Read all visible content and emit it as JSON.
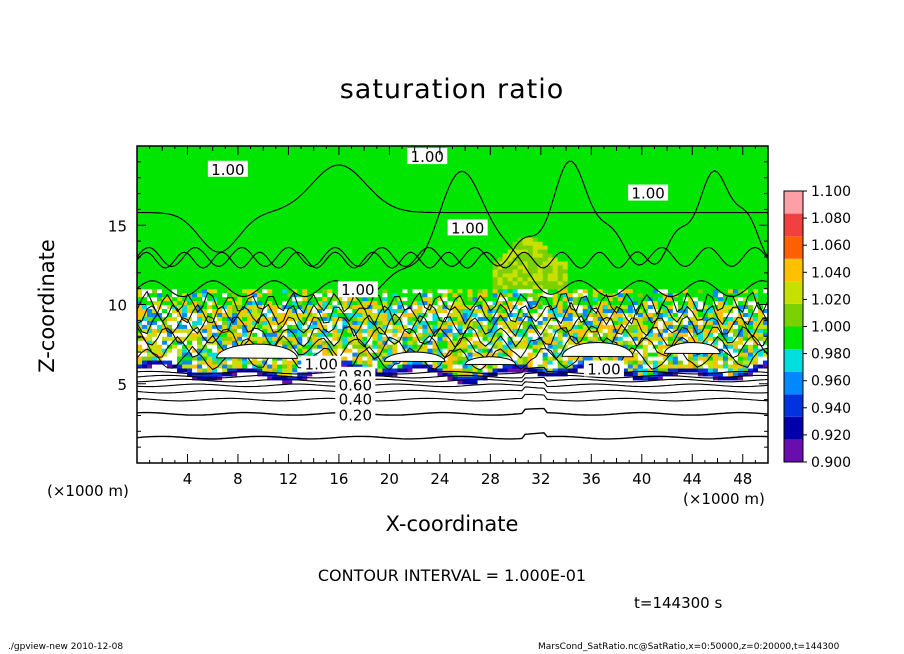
{
  "chart_data": {
    "type": "heatmap",
    "title": "saturation ratio",
    "xlabel": "X-coordinate",
    "ylabel": "Z-coordinate",
    "x_unit": "(×1000 m)",
    "z_unit": "(×1000 m)",
    "xlim": [
      0,
      50
    ],
    "ylim": [
      0,
      20
    ],
    "x_ticks": [
      4,
      8,
      12,
      16,
      20,
      24,
      28,
      32,
      36,
      40,
      44,
      48
    ],
    "y_ticks": [
      5,
      10,
      15
    ],
    "colorbar": {
      "levels": [
        0.9,
        0.92,
        0.94,
        0.96,
        0.98,
        1.0,
        1.02,
        1.04,
        1.06,
        1.08,
        1.1
      ],
      "level_labels": [
        "0.900",
        "0.920",
        "0.940",
        "0.960",
        "0.980",
        "1.000",
        "1.020",
        "1.040",
        "1.060",
        "1.080",
        "1.100"
      ],
      "colors": [
        "#6a0dad",
        "#0000aa",
        "#0033dd",
        "#0088ff",
        "#00dddd",
        "#00e600",
        "#7ad000",
        "#c8e000",
        "#ffc000",
        "#ff6000",
        "#f04040",
        "#ff9fa8"
      ]
    },
    "contour_interval_text": "CONTOUR INTERVAL = 1.000E-01",
    "contour_labels": [
      "1.00",
      "1.00",
      "1.00",
      "1.00",
      "1.00",
      "1.00",
      "1.00",
      "0.80",
      "0.60",
      "0.40",
      "0.20"
    ],
    "time_text": "t=144300 s"
  },
  "footer": {
    "left": "./gpview-new   2010-12-08",
    "right": "MarsCond_SatRatio.nc@SatRatio,x=0:50000,z=0:20000,t=144300"
  }
}
